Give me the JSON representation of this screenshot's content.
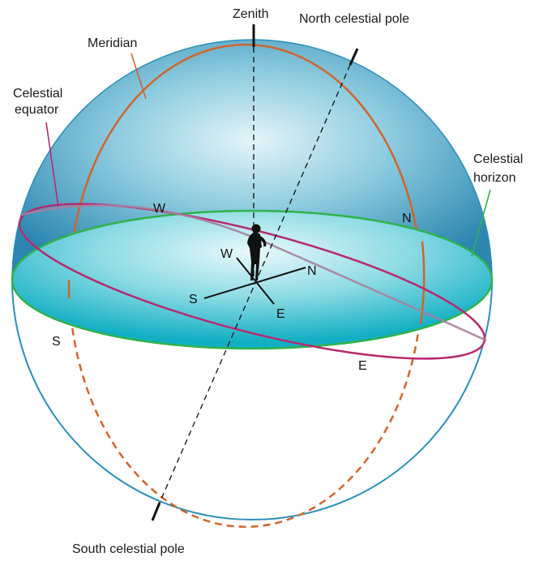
{
  "labels": {
    "zenith": "Zenith",
    "north_celestial_pole": "North celestial pole",
    "meridian": "Meridian",
    "celestial_equator_line1": "Celestial",
    "celestial_equator_line2": "equator",
    "celestial_horizon_line1": "Celestial",
    "celestial_horizon_line2": "horizon",
    "south_celestial_pole": "South celestial pole"
  },
  "equator_points": {
    "west": "W",
    "east": "E"
  },
  "horizon_points": {
    "north": "N",
    "south": "S"
  },
  "observer_compass": {
    "west": "W",
    "north": "N",
    "south": "S",
    "east": "E"
  },
  "colors": {
    "sphere_light": "#d6eef5",
    "sphere_mid": "#6cbcd6",
    "sphere_dark": "#2d8bb4",
    "sphere_outline": "#2a8fb8",
    "horizon_fill": "#23b7c9",
    "horizon_stroke": "#2fb34a",
    "meridian": "#d0652a",
    "equator": "#b8296e",
    "axis": "#111111"
  }
}
